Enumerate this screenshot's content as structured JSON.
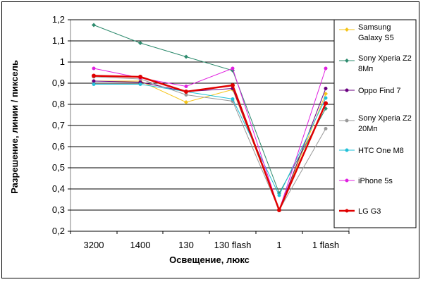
{
  "chart_data": {
    "type": "line",
    "title": "",
    "xlabel": "Освещение, люкс",
    "ylabel": "Разрешение, линии / пиксель",
    "categories": [
      "3200",
      "1400",
      "130",
      "130 flash",
      "1",
      "1 flash"
    ],
    "ylim": [
      0.2,
      1.2
    ],
    "yticks": [
      "0,2",
      "0,3",
      "0,4",
      "0,5",
      "0,6",
      "0,7",
      "0,8",
      "0,9",
      "1",
      "1,1",
      "1,2"
    ],
    "grid": "horizontal",
    "legend_position": "right",
    "series": [
      {
        "name": "Samsung Galaxy S5",
        "legend_lines": [
          "Samsung",
          "Galaxy S5"
        ],
        "color": "#f5c518",
        "marker": "diamond",
        "values": [
          0.91,
          0.91,
          0.81,
          0.87,
          0.3,
          0.85
        ]
      },
      {
        "name": "Sony Xperia Z2 8Mп",
        "legend_lines": [
          "Sony Xperia Z2",
          "8Mп"
        ],
        "color": "#2e8b6e",
        "marker": "diamond",
        "values": [
          1.175,
          1.09,
          1.025,
          0.96,
          0.38,
          0.78
        ]
      },
      {
        "name": "Oppo Find 7",
        "legend_lines": [
          "Oppo Find 7"
        ],
        "color": "#6a0080",
        "marker": "circle",
        "values": [
          0.91,
          0.905,
          0.86,
          0.875,
          0.3,
          0.875
        ]
      },
      {
        "name": "Sony Xperia Z2 20Mп",
        "legend_lines": [
          "Sony Xperia Z2",
          "20Mп"
        ],
        "color": "#999999",
        "marker": "circle",
        "values": [
          0.93,
          0.92,
          0.845,
          0.815,
          0.3,
          0.685
        ]
      },
      {
        "name": "HTC One M8",
        "legend_lines": [
          "HTC One M8"
        ],
        "color": "#22c0d8",
        "marker": "circle",
        "values": [
          0.895,
          0.895,
          0.86,
          0.825,
          0.37,
          0.83
        ]
      },
      {
        "name": "iPhone 5s",
        "legend_lines": [
          "iPhone 5s"
        ],
        "color": "#e020e0",
        "marker": "circle",
        "values": [
          0.97,
          0.925,
          0.885,
          0.97,
          0.3,
          0.97
        ]
      },
      {
        "name": "LG G3",
        "legend_lines": [
          "LG G3"
        ],
        "color": "#e00000",
        "marker": "circle",
        "values": [
          0.935,
          0.93,
          0.86,
          0.89,
          0.3,
          0.805
        ],
        "bold": true
      }
    ]
  }
}
